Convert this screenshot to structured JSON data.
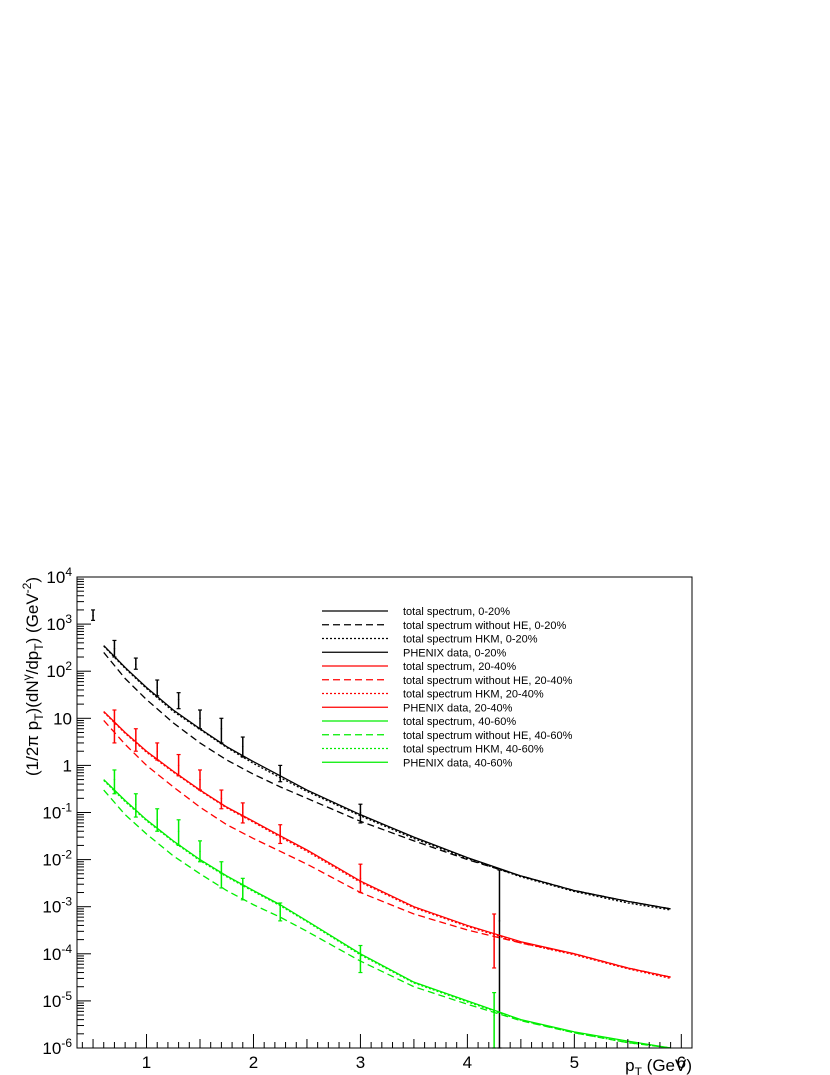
{
  "chart_data": {
    "type": "line",
    "title": "",
    "xlabel": "p_T (GeV)",
    "ylabel": "(1/2π p_T)(dN^γ/dp_T) (GeV^-2)",
    "xlim": [
      0.35,
      6.1
    ],
    "ylim": [
      1e-06,
      10000.0
    ],
    "yscale": "log",
    "grid": false,
    "legend_position": "top-right",
    "x_ticks": [
      "1",
      "2",
      "3",
      "4",
      "5",
      "6"
    ],
    "y_ticks": [
      "10^-6",
      "10^-5",
      "10^-4",
      "10^-3",
      "10^-2",
      "10^-1",
      "1",
      "10",
      "10^2",
      "10^3",
      "10^4"
    ],
    "series": [
      {
        "name": "total spectrum, 0-20%",
        "style": "solid",
        "color": "#000000",
        "x": [
          0.6,
          0.8,
          1.0,
          1.25,
          1.5,
          1.75,
          2.0,
          2.25,
          2.5,
          3.0,
          3.5,
          4.0,
          4.5,
          5.0,
          5.5,
          5.9
        ],
        "y": [
          350,
          120,
          45,
          15,
          6,
          2.5,
          1.2,
          0.6,
          0.3,
          0.09,
          0.03,
          0.011,
          0.0045,
          0.0022,
          0.0013,
          0.0009
        ]
      },
      {
        "name": "total spectrum without HE, 0-20%",
        "style": "dashed",
        "color": "#000000",
        "x": [
          0.6,
          0.8,
          1.0,
          1.25,
          1.5,
          1.75,
          2.0,
          2.25,
          2.5,
          3.0,
          3.5,
          4.0,
          4.5,
          5.0,
          5.5,
          5.9
        ],
        "y": [
          250,
          70,
          25,
          8,
          3,
          1.3,
          0.65,
          0.35,
          0.2,
          0.065,
          0.025,
          0.01,
          0.0045,
          0.0022,
          0.0013,
          0.0009
        ]
      },
      {
        "name": "total spectrum HKM, 0-20%",
        "style": "dotted",
        "color": "#000000",
        "x": [
          0.6,
          0.8,
          1.0,
          1.25,
          1.5,
          1.75,
          2.0,
          2.25,
          2.5,
          3.0,
          3.5,
          4.0,
          4.5,
          5.0,
          5.5,
          5.9
        ],
        "y": [
          340,
          115,
          43,
          14,
          5.8,
          2.4,
          1.1,
          0.55,
          0.28,
          0.085,
          0.028,
          0.0105,
          0.0043,
          0.0021,
          0.0012,
          0.00085
        ]
      },
      {
        "name": "PHENIX data, 0-20%",
        "style": "errorbar",
        "color": "#000000",
        "x": [
          0.5,
          0.7,
          0.9,
          1.1,
          1.3,
          1.5,
          1.7,
          1.9,
          2.25,
          3.0,
          4.3
        ],
        "y": [
          1500.0,
          300.0,
          140.0,
          45.0,
          25.0,
          10.0,
          6,
          2.5,
          0.7,
          0.1,
          0.0005
        ],
        "y_low": [
          1200.0,
          200.0,
          110.0,
          30.0,
          16.0,
          6,
          3,
          1.5,
          0.45,
          0.06,
          1e-06
        ],
        "y_high": [
          2000.0,
          450.0,
          190.0,
          65.0,
          35.0,
          15.0,
          10.0,
          4,
          1,
          0.15,
          0.006
        ]
      },
      {
        "name": "total spectrum, 20-40%",
        "style": "solid",
        "color": "#ff0000",
        "x": [
          0.6,
          0.8,
          1.0,
          1.25,
          1.5,
          1.75,
          2.0,
          2.25,
          2.5,
          3.0,
          3.5,
          4.0,
          4.5,
          5.0,
          5.5,
          5.9
        ],
        "y": [
          14,
          5,
          2,
          0.75,
          0.3,
          0.13,
          0.065,
          0.032,
          0.016,
          0.0035,
          0.001,
          0.0004,
          0.00018,
          0.0001,
          5e-05,
          3.2e-05
        ]
      },
      {
        "name": "total spectrum without HE, 20-40%",
        "style": "dashed",
        "color": "#ff0000",
        "x": [
          0.6,
          0.8,
          1.0,
          1.25,
          1.5,
          1.75,
          2.0,
          2.25,
          2.5,
          3.0,
          3.5,
          4.0,
          4.5,
          5.0,
          5.5,
          5.9
        ],
        "y": [
          9,
          2.8,
          1,
          0.35,
          0.13,
          0.055,
          0.028,
          0.015,
          0.008,
          0.002,
          0.0007,
          0.00032,
          0.00017,
          0.0001,
          5e-05,
          3.2e-05
        ]
      },
      {
        "name": "total spectrum HKM, 20-40%",
        "style": "dotted",
        "color": "#ff0000",
        "x": [
          0.6,
          0.8,
          1.0,
          1.25,
          1.5,
          1.75,
          2.0,
          2.25,
          2.5,
          3.0,
          3.5,
          4.0,
          4.5,
          5.0,
          5.5,
          5.9
        ],
        "y": [
          13.5,
          4.8,
          1.9,
          0.72,
          0.29,
          0.125,
          0.062,
          0.03,
          0.015,
          0.0033,
          0.00095,
          0.00038,
          0.00017,
          9.5e-05,
          4.8e-05,
          3e-05
        ]
      },
      {
        "name": "PHENIX data, 20-40%",
        "style": "errorbar",
        "color": "#ff0000",
        "x": [
          0.7,
          0.9,
          1.1,
          1.3,
          1.5,
          1.7,
          1.9,
          2.25,
          3.0,
          4.25
        ],
        "y": [
          8,
          3.5,
          2,
          1,
          0.5,
          0.2,
          0.1,
          0.035,
          0.004,
          0.0002
        ],
        "y_low": [
          3,
          2,
          1.3,
          0.6,
          0.3,
          0.12,
          0.06,
          0.022,
          0.002,
          5e-05
        ],
        "y_high": [
          15,
          6,
          3,
          1.7,
          0.8,
          0.3,
          0.16,
          0.055,
          0.008,
          0.0007
        ]
      },
      {
        "name": "total spectrum, 40-60%",
        "style": "solid",
        "color": "#00ee00",
        "x": [
          0.6,
          0.8,
          1.0,
          1.25,
          1.5,
          1.75,
          2.0,
          2.25,
          2.5,
          3.0,
          3.5,
          4.0,
          4.5,
          5.0,
          5.5,
          5.9
        ],
        "y": [
          0.5,
          0.18,
          0.07,
          0.025,
          0.01,
          0.0045,
          0.0022,
          0.0011,
          0.0005,
          0.0001,
          2.5e-05,
          1e-05,
          4e-06,
          2.2e-06,
          1.4e-06,
          8.5e-07
        ]
      },
      {
        "name": "total spectrum without HE, 40-60%",
        "style": "dashed",
        "color": "#00ee00",
        "x": [
          0.6,
          0.8,
          1.0,
          1.25,
          1.5,
          1.75,
          2.0,
          2.25,
          2.5,
          3.0,
          3.5,
          4.0,
          4.5,
          5.0,
          5.5,
          5.9
        ],
        "y": [
          0.3,
          0.09,
          0.035,
          0.012,
          0.005,
          0.0022,
          0.0011,
          0.0006,
          0.0003,
          7e-05,
          2e-05,
          8.5e-06,
          3.8e-06,
          2.1e-06,
          1.3e-06,
          8e-07
        ]
      },
      {
        "name": "total spectrum HKM, 40-60%",
        "style": "dotted",
        "color": "#00ee00",
        "x": [
          0.6,
          0.8,
          1.0,
          1.25,
          1.5,
          1.75,
          2.0,
          2.25,
          2.5,
          3.0,
          3.5,
          4.0,
          4.5,
          5.0,
          5.5,
          5.9
        ],
        "y": [
          0.48,
          0.17,
          0.067,
          0.024,
          0.0095,
          0.0043,
          0.0021,
          0.00105,
          0.00048,
          9.5e-05,
          2.4e-05,
          9.5e-06,
          3.9e-06,
          2.1e-06,
          1.3e-06,
          8e-07
        ]
      },
      {
        "name": "PHENIX data, 40-60%",
        "style": "errorbar",
        "color": "#00ee00",
        "x": [
          0.7,
          0.9,
          1.1,
          1.3,
          1.5,
          1.7,
          1.9,
          2.25,
          3.0,
          4.25
        ],
        "y": [
          0.5,
          0.15,
          0.07,
          0.04,
          0.015,
          0.005,
          0.0025,
          0.0008,
          8e-05,
          5e-06
        ],
        "y_low": [
          0.25,
          0.08,
          0.04,
          0.02,
          0.009,
          0.0025,
          0.0014,
          0.0005,
          4e-05,
          1e-06
        ],
        "y_high": [
          0.8,
          0.25,
          0.12,
          0.07,
          0.025,
          0.009,
          0.004,
          0.0012,
          0.00015,
          1.5e-05
        ]
      }
    ]
  }
}
